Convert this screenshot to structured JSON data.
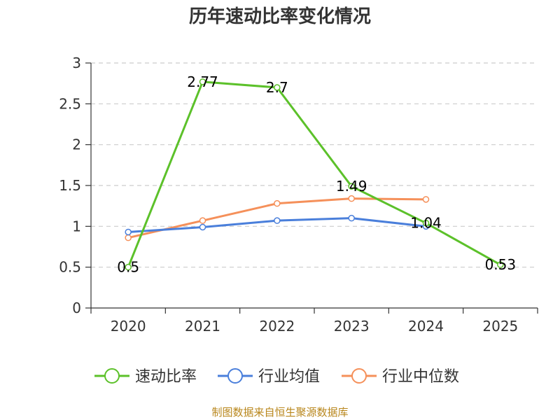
{
  "chart_data": {
    "type": "line",
    "title": "历年速动比率变化情况",
    "categories": [
      "2020",
      "2021",
      "2022",
      "2023",
      "2024",
      "2025"
    ],
    "ylim": [
      0,
      3
    ],
    "yticks": [
      "0",
      "0.5",
      "1",
      "1.5",
      "2",
      "2.5",
      "3"
    ],
    "grid": true,
    "legend_position": "bottom",
    "series": [
      {
        "name": "速动比率",
        "color": "#5cc12a",
        "values": [
          0.5,
          2.77,
          2.7,
          1.49,
          1.04,
          0.53
        ],
        "labels": [
          "0.5",
          "2.77",
          "2.7",
          "1.49",
          "1.04",
          "0.53"
        ]
      },
      {
        "name": "行业均值",
        "color": "#4a7fdb",
        "values": [
          0.93,
          0.99,
          1.07,
          1.1,
          1.0,
          null
        ]
      },
      {
        "name": "行业中位数",
        "color": "#f5905a",
        "values": [
          0.86,
          1.07,
          1.28,
          1.34,
          1.33,
          null
        ]
      }
    ]
  },
  "source_text": "制图数据来自恒生聚源数据库",
  "source_color": "#b8861b"
}
